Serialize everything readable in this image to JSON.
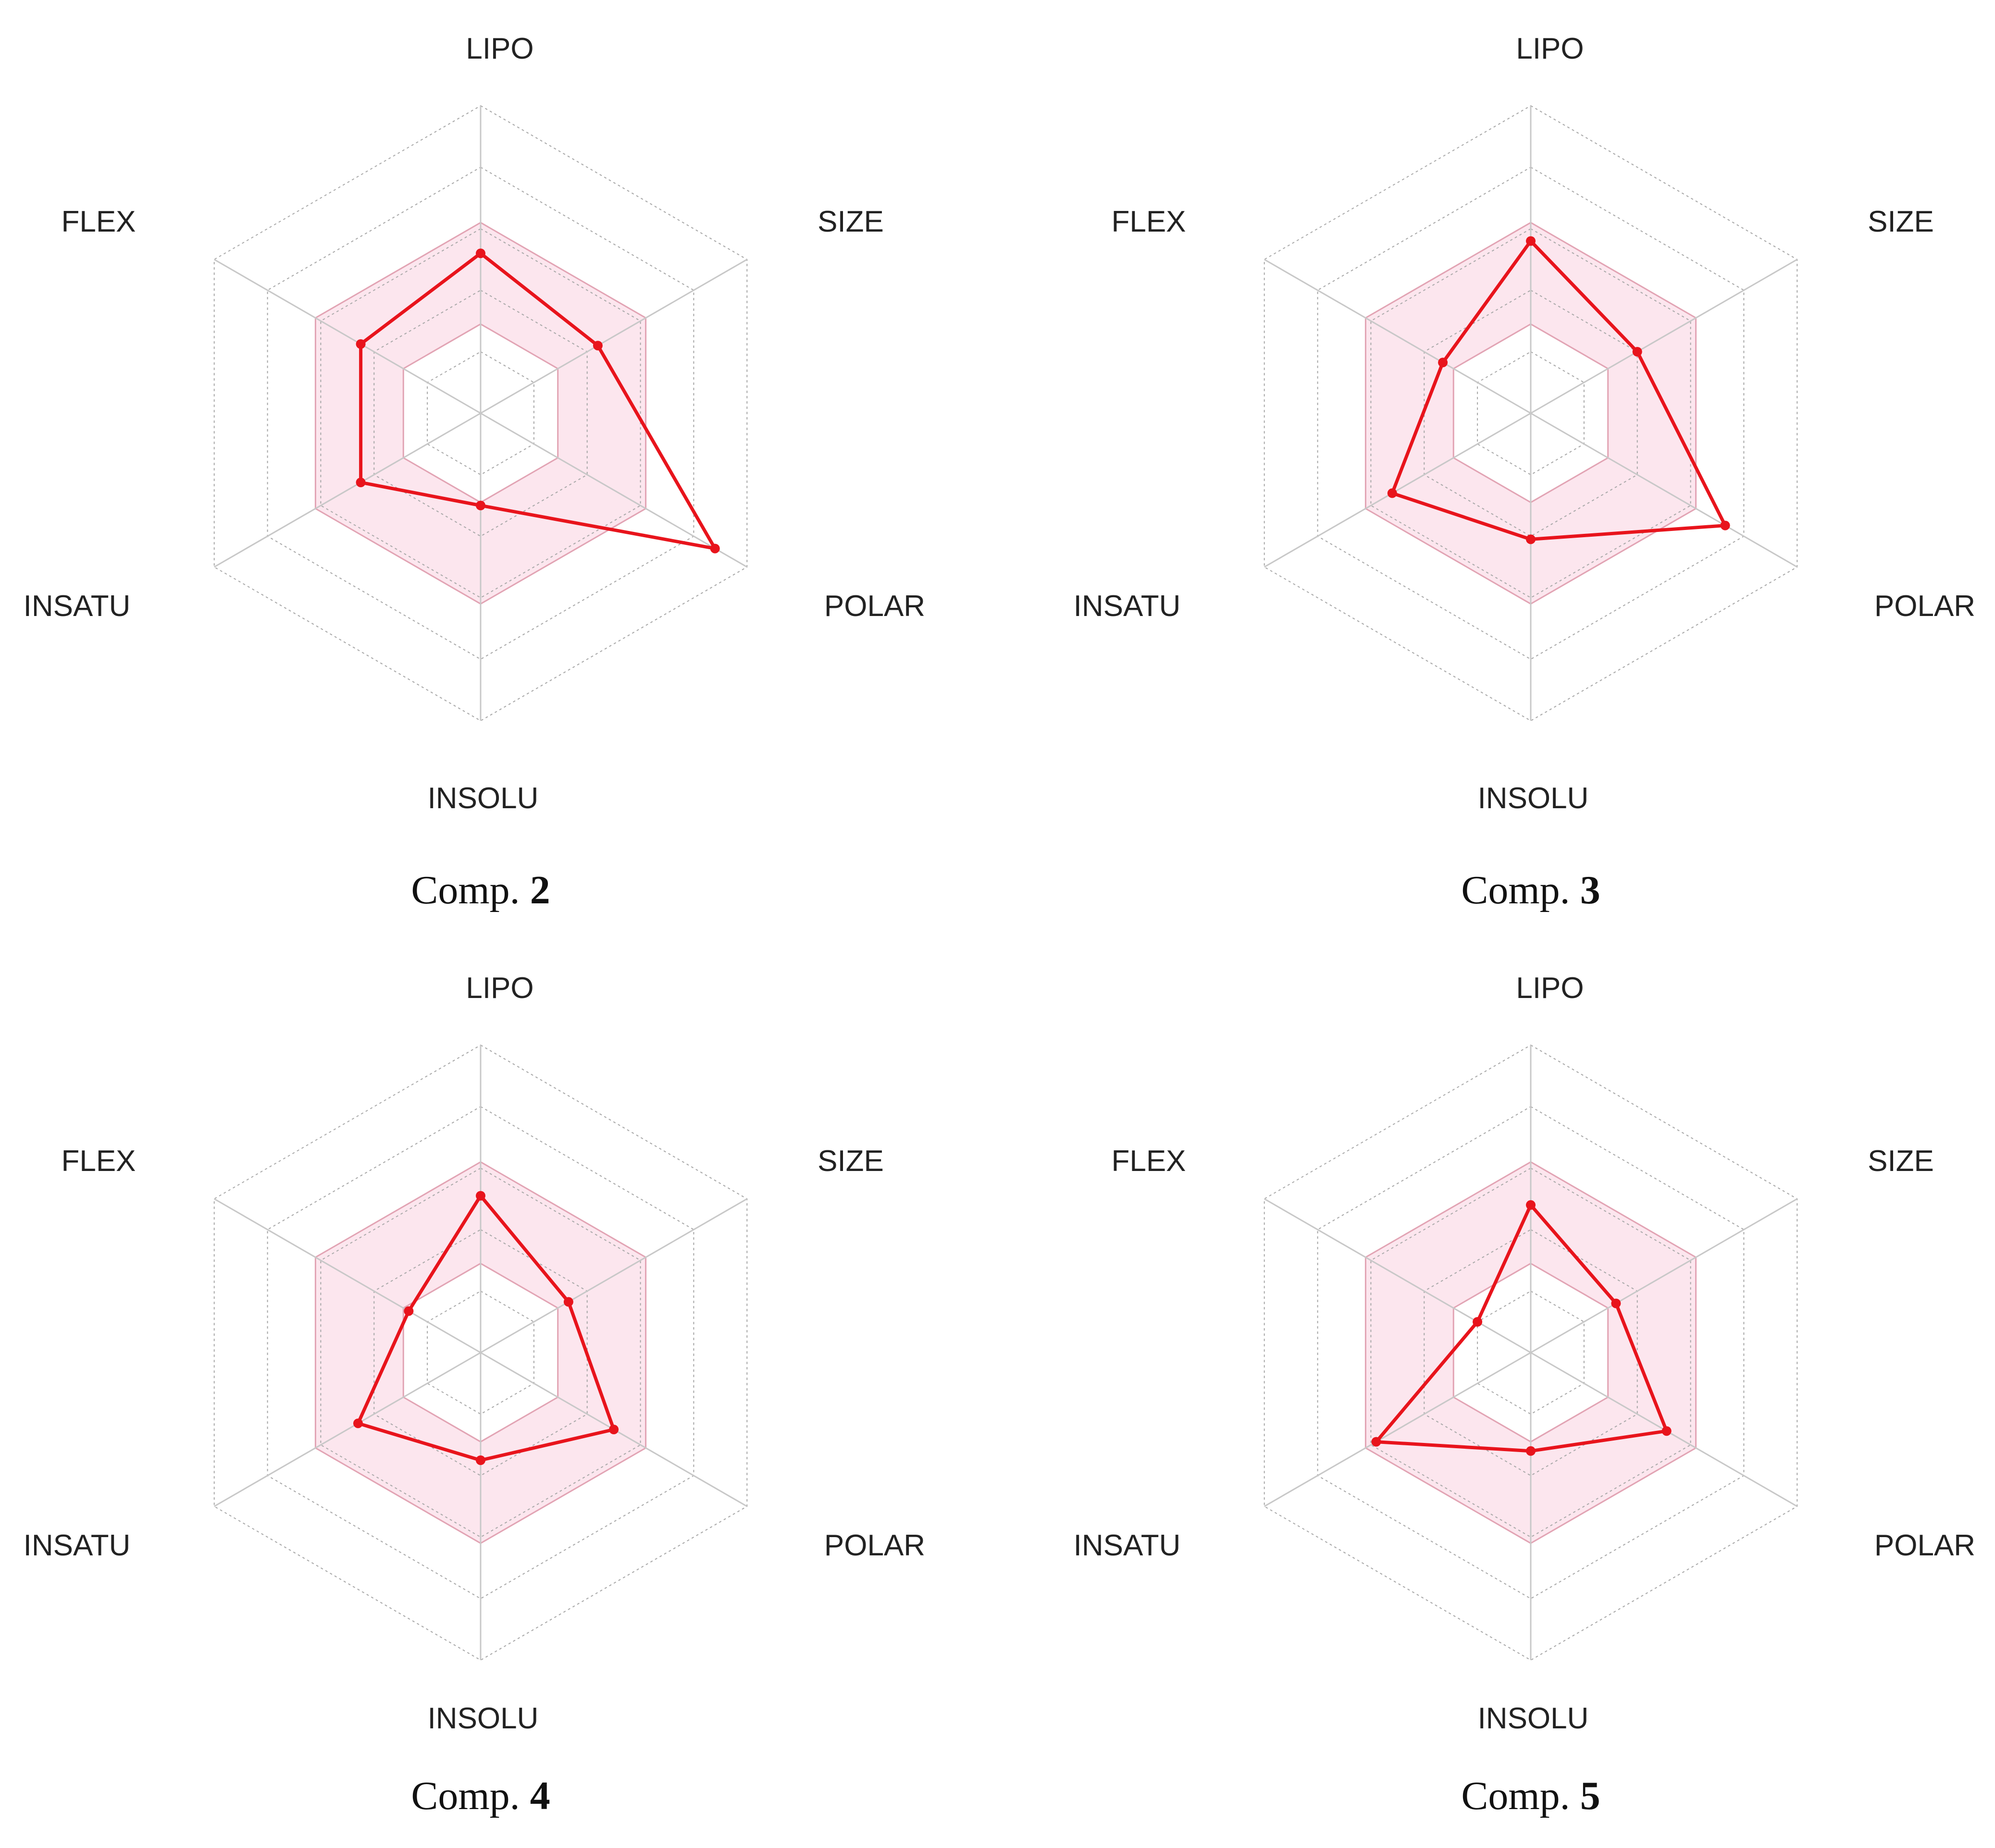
{
  "chart_data": [
    {
      "type": "radar",
      "caption_prefix": "Comp.",
      "caption_number": "2",
      "axes": [
        "LIPO",
        "SIZE",
        "POLAR",
        "INSOLU",
        "INSATU",
        "FLEX"
      ],
      "values": [
        0.52,
        0.44,
        0.88,
        0.3,
        0.45,
        0.45
      ],
      "optimal_range": {
        "min": [
          0.29,
          0.29,
          0.29,
          0.29,
          0.29,
          0.29
        ],
        "max": [
          0.62,
          0.62,
          0.62,
          0.62,
          0.62,
          0.62
        ]
      },
      "colors": {
        "line": "#e8141c",
        "fill": "#fce6ee",
        "fill_edge": "#e2a4b4",
        "grid": "#a8a8a8"
      }
    },
    {
      "type": "radar",
      "caption_prefix": "Comp.",
      "caption_number": "3",
      "axes": [
        "LIPO",
        "SIZE",
        "POLAR",
        "INSOLU",
        "INSATU",
        "FLEX"
      ],
      "values": [
        0.56,
        0.4,
        0.73,
        0.41,
        0.52,
        0.33
      ],
      "optimal_range": {
        "min": [
          0.29,
          0.29,
          0.29,
          0.29,
          0.29,
          0.29
        ],
        "max": [
          0.62,
          0.62,
          0.62,
          0.62,
          0.62,
          0.62
        ]
      },
      "colors": {
        "line": "#e8141c",
        "fill": "#fce6ee",
        "fill_edge": "#e2a4b4",
        "grid": "#a8a8a8"
      }
    },
    {
      "type": "radar",
      "caption_prefix": "Comp.",
      "caption_number": "4",
      "axes": [
        "LIPO",
        "SIZE",
        "POLAR",
        "INSOLU",
        "INSATU",
        "FLEX"
      ],
      "values": [
        0.51,
        0.33,
        0.5,
        0.35,
        0.46,
        0.27
      ],
      "optimal_range": {
        "min": [
          0.29,
          0.29,
          0.29,
          0.29,
          0.29,
          0.29
        ],
        "max": [
          0.62,
          0.62,
          0.62,
          0.62,
          0.62,
          0.62
        ]
      },
      "colors": {
        "line": "#e8141c",
        "fill": "#fce6ee",
        "fill_edge": "#e2a4b4",
        "grid": "#a8a8a8"
      }
    },
    {
      "type": "radar",
      "caption_prefix": "Comp.",
      "caption_number": "5",
      "axes": [
        "LIPO",
        "SIZE",
        "POLAR",
        "INSOLU",
        "INSATU",
        "FLEX"
      ],
      "values": [
        0.48,
        0.32,
        0.51,
        0.32,
        0.58,
        0.2
      ],
      "optimal_range": {
        "min": [
          0.29,
          0.29,
          0.29,
          0.29,
          0.29,
          0.29
        ],
        "max": [
          0.62,
          0.62,
          0.62,
          0.62,
          0.62,
          0.62
        ]
      },
      "colors": {
        "line": "#e8141c",
        "fill": "#fce6ee",
        "fill_edge": "#e2a4b4",
        "grid": "#a8a8a8"
      }
    }
  ]
}
